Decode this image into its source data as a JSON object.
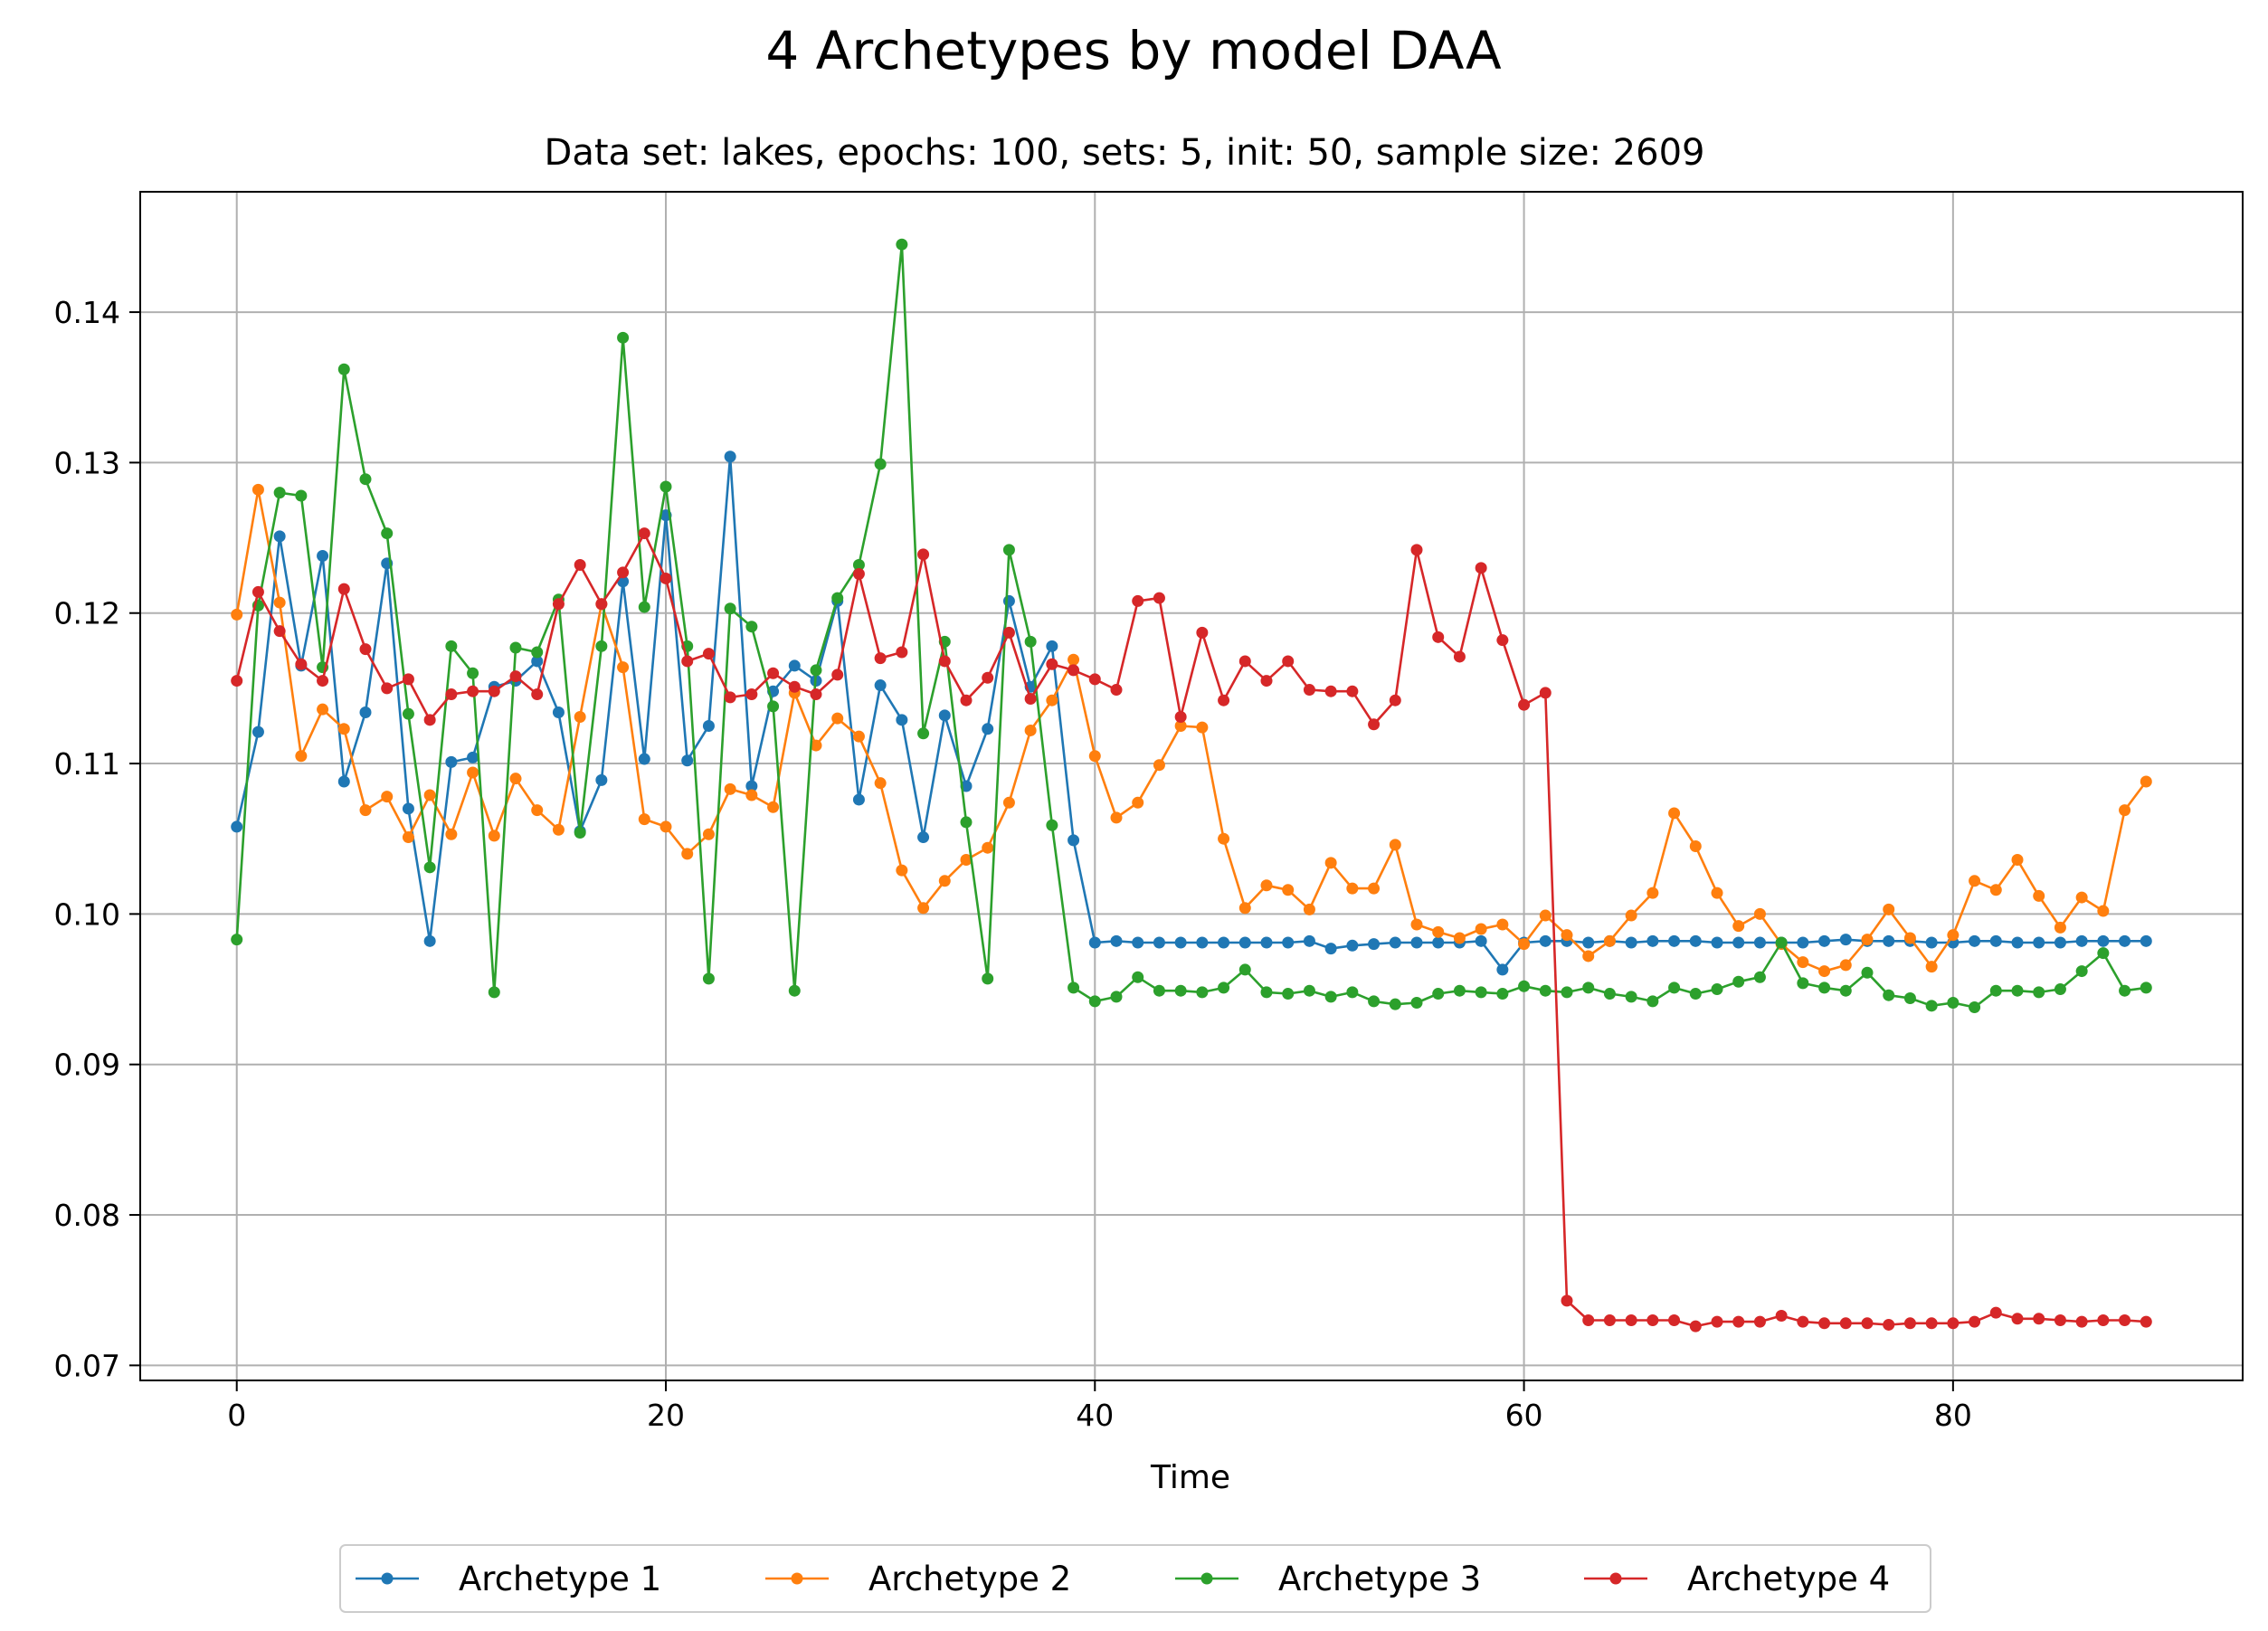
{
  "chart_data": {
    "type": "line",
    "title": "4 Archetypes by model DAA",
    "subtitle": "Data set: lakes, epochs: 100, sets: 5, init: 50, sample size: 2609",
    "xlabel": "Time",
    "ylabel": "",
    "xlim": [
      -4.5,
      93.5
    ],
    "ylim": [
      0.069,
      0.148
    ],
    "x_ticks": [
      0,
      20,
      40,
      60,
      80
    ],
    "x_tick_labels": [
      "0",
      "20",
      "40",
      "60",
      "80"
    ],
    "y_ticks": [
      0.07,
      0.08,
      0.09,
      0.1,
      0.11,
      0.12,
      0.13,
      0.14
    ],
    "y_tick_labels": [
      "0.07",
      "0.08",
      "0.09",
      "0.10",
      "0.11",
      "0.12",
      "0.13",
      "0.14"
    ],
    "grid": true,
    "legend_position": "bottom-center",
    "x": [
      0,
      1,
      2,
      3,
      4,
      5,
      6,
      7,
      8,
      9,
      10,
      11,
      12,
      13,
      14,
      15,
      16,
      17,
      18,
      19,
      20,
      21,
      22,
      23,
      24,
      25,
      26,
      27,
      28,
      29,
      30,
      31,
      32,
      33,
      34,
      35,
      36,
      37,
      38,
      39,
      40,
      41,
      42,
      43,
      44,
      45,
      46,
      47,
      48,
      49,
      50,
      51,
      52,
      53,
      54,
      55,
      56,
      57,
      58,
      59,
      60,
      61,
      62,
      63,
      64,
      65,
      66,
      67,
      68,
      69,
      70,
      71,
      72,
      73,
      74,
      75,
      76,
      77,
      78,
      79,
      80,
      81,
      82,
      83,
      84,
      85,
      86,
      87,
      88,
      89
    ],
    "series": [
      {
        "name": "Archetype 1",
        "color": "#1f77b4",
        "values": [
          0.1058,
          0.1121,
          0.1251,
          0.1165,
          0.1238,
          0.1088,
          0.1134,
          0.1233,
          0.107,
          0.0982,
          0.1101,
          0.1104,
          0.1151,
          0.1155,
          0.1168,
          0.1134,
          0.1055,
          0.1089,
          0.1221,
          0.1103,
          0.1265,
          0.1102,
          0.1125,
          0.1304,
          0.1085,
          0.1148,
          0.1165,
          0.1155,
          0.1208,
          0.1076,
          0.1152,
          0.1129,
          0.1051,
          0.1132,
          0.1085,
          0.1123,
          0.1208,
          0.1151,
          0.1178,
          0.1049,
          0.0981,
          0.0982,
          0.0981,
          0.0981,
          0.0981,
          0.0981,
          0.0981,
          0.0981,
          0.0981,
          0.0981,
          0.0982,
          0.0977,
          0.0979,
          0.098,
          0.0981,
          0.0981,
          0.0981,
          0.0981,
          0.0982,
          0.0963,
          0.0981,
          0.0982,
          0.0982,
          0.0981,
          0.0982,
          0.0981,
          0.0982,
          0.0982,
          0.0982,
          0.0981,
          0.0981,
          0.0981,
          0.0981,
          0.0981,
          0.0982,
          0.0983,
          0.0982,
          0.0982,
          0.0982,
          0.0981,
          0.0981,
          0.0982,
          0.0982,
          0.0981,
          0.0981,
          0.0981,
          0.0982,
          0.0982,
          0.0982,
          0.0982
        ]
      },
      {
        "name": "Archetype 2",
        "color": "#ff7f0e",
        "values": [
          0.1199,
          0.1282,
          0.1207,
          0.1105,
          0.1136,
          0.1123,
          0.1069,
          0.1078,
          0.1051,
          0.1079,
          0.1053,
          0.1094,
          0.1052,
          0.109,
          0.1069,
          0.1056,
          0.1131,
          0.1206,
          0.1164,
          0.1063,
          0.1058,
          0.104,
          0.1053,
          0.1083,
          0.1079,
          0.1071,
          0.1147,
          0.1112,
          0.113,
          0.1118,
          0.1087,
          0.1029,
          0.1004,
          0.1022,
          0.1036,
          0.1044,
          0.1074,
          0.1122,
          0.1142,
          0.1169,
          0.1105,
          0.1064,
          0.1074,
          0.1099,
          0.1125,
          0.1124,
          0.105,
          0.1004,
          0.1019,
          0.1016,
          0.1003,
          0.1034,
          0.1017,
          0.1017,
          0.1046,
          0.0993,
          0.0988,
          0.0984,
          0.099,
          0.0993,
          0.098,
          0.0999,
          0.0986,
          0.0972,
          0.0982,
          0.0999,
          0.1014,
          0.1067,
          0.1045,
          0.1014,
          0.0992,
          0.1,
          0.098,
          0.0968,
          0.0962,
          0.0966,
          0.0983,
          0.1003,
          0.0984,
          0.0965,
          0.0986,
          0.1022,
          0.1016,
          0.1036,
          0.1012,
          0.0991,
          0.1011,
          0.1002,
          0.1069,
          0.1088
        ]
      },
      {
        "name": "Archetype 3",
        "color": "#2ca02c",
        "values": [
          0.0983,
          0.1205,
          0.128,
          0.1278,
          0.1164,
          0.1362,
          0.1289,
          0.1253,
          0.1133,
          0.1031,
          0.1178,
          0.116,
          0.0948,
          0.1177,
          0.1174,
          0.1209,
          0.1054,
          0.1178,
          0.1383,
          0.1204,
          0.1284,
          0.1178,
          0.0957,
          0.1203,
          0.1191,
          0.1138,
          0.0949,
          0.1162,
          0.121,
          0.1232,
          0.1299,
          0.1445,
          0.112,
          0.1181,
          0.1061,
          0.0957,
          0.1242,
          0.1181,
          0.1059,
          0.0951,
          0.0942,
          0.0945,
          0.0958,
          0.0949,
          0.0949,
          0.0948,
          0.0951,
          0.0963,
          0.0948,
          0.0947,
          0.0949,
          0.0945,
          0.0948,
          0.0942,
          0.094,
          0.0941,
          0.0947,
          0.0949,
          0.0948,
          0.0947,
          0.0952,
          0.0949,
          0.0948,
          0.0951,
          0.0947,
          0.0945,
          0.0942,
          0.0951,
          0.0947,
          0.095,
          0.0955,
          0.0958,
          0.0981,
          0.0954,
          0.0951,
          0.0949,
          0.0961,
          0.0946,
          0.0944,
          0.0939,
          0.0941,
          0.0938,
          0.0949,
          0.0949,
          0.0948,
          0.095,
          0.0962,
          0.0974,
          0.0949,
          0.0951
        ]
      },
      {
        "name": "Archetype 4",
        "color": "#d62728",
        "values": [
          0.1155,
          0.1214,
          0.1188,
          0.1166,
          0.1155,
          0.1216,
          0.1176,
          0.115,
          0.1156,
          0.1129,
          0.1146,
          0.1148,
          0.1148,
          0.1158,
          0.1146,
          0.1206,
          0.1232,
          0.1206,
          0.1227,
          0.1253,
          0.1223,
          0.1168,
          0.1173,
          0.1144,
          0.1146,
          0.116,
          0.1151,
          0.1146,
          0.1159,
          0.1226,
          0.117,
          0.1174,
          0.1239,
          0.1168,
          0.1142,
          0.1157,
          0.1187,
          0.1143,
          0.1166,
          0.1162,
          0.1156,
          0.1149,
          0.1208,
          0.121,
          0.1131,
          0.1187,
          0.1142,
          0.1168,
          0.1155,
          0.1168,
          0.1149,
          0.1148,
          0.1148,
          0.1126,
          0.1142,
          0.1242,
          0.1184,
          0.1171,
          0.123,
          0.1182,
          0.1139,
          0.1147,
          0.0743,
          0.073,
          0.073,
          0.073,
          0.073,
          0.073,
          0.0726,
          0.0729,
          0.0729,
          0.0729,
          0.0733,
          0.0729,
          0.0728,
          0.0728,
          0.0728,
          0.0727,
          0.0728,
          0.0728,
          0.0728,
          0.0729,
          0.0735,
          0.0731,
          0.0731,
          0.073,
          0.0729,
          0.073,
          0.073,
          0.0729
        ]
      }
    ]
  }
}
